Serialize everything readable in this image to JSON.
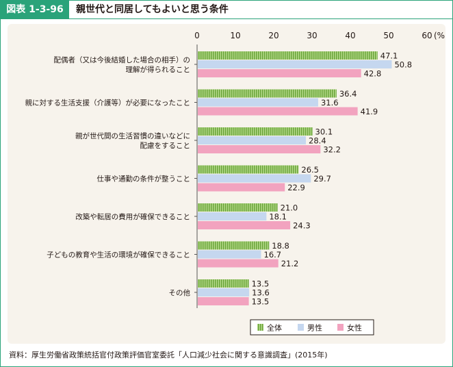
{
  "header": {
    "figure_label": "図表 1-3-96",
    "title": "親世代と同居してもよいと思う条件"
  },
  "source_note": "資料：厚生労働省政策統括官付政策評価官室委託「人口減少社会に関する意識調査」(2015年)",
  "colors": {
    "accent": "#2aa37a",
    "panel_bg": "#f7f3ec",
    "all": "#8cc152",
    "male": "#c5d7ef",
    "female": "#f2a3bf"
  },
  "chart_data": {
    "type": "bar",
    "orientation": "horizontal",
    "unit_label": "(%)",
    "xlim": [
      0,
      60
    ],
    "xticks": [
      0,
      10,
      20,
      30,
      40,
      50,
      60
    ],
    "grid": false,
    "legend_position": "bottom-right",
    "categories": [
      [
        "配偶者（又は今後結婚した場合の相手）の",
        "理解が得られること"
      ],
      [
        "親に対する生活支援（介護等）が必要になったこと"
      ],
      [
        "親が世代間の生活習慣の違いなどに",
        "配慮をすること"
      ],
      [
        "仕事や通勤の条件が整うこと"
      ],
      [
        "改築や転居の費用が確保できること"
      ],
      [
        "子どもの教育や生活の環境が確保できること"
      ],
      [
        "その他"
      ]
    ],
    "series": [
      {
        "name": "全体",
        "values": [
          47.1,
          36.4,
          30.1,
          26.5,
          21.0,
          18.8,
          13.5
        ]
      },
      {
        "name": "男性",
        "values": [
          50.8,
          31.6,
          28.4,
          29.7,
          18.1,
          16.7,
          13.6
        ]
      },
      {
        "name": "女性",
        "values": [
          42.8,
          41.9,
          32.2,
          22.9,
          24.3,
          21.2,
          13.5
        ]
      }
    ]
  }
}
